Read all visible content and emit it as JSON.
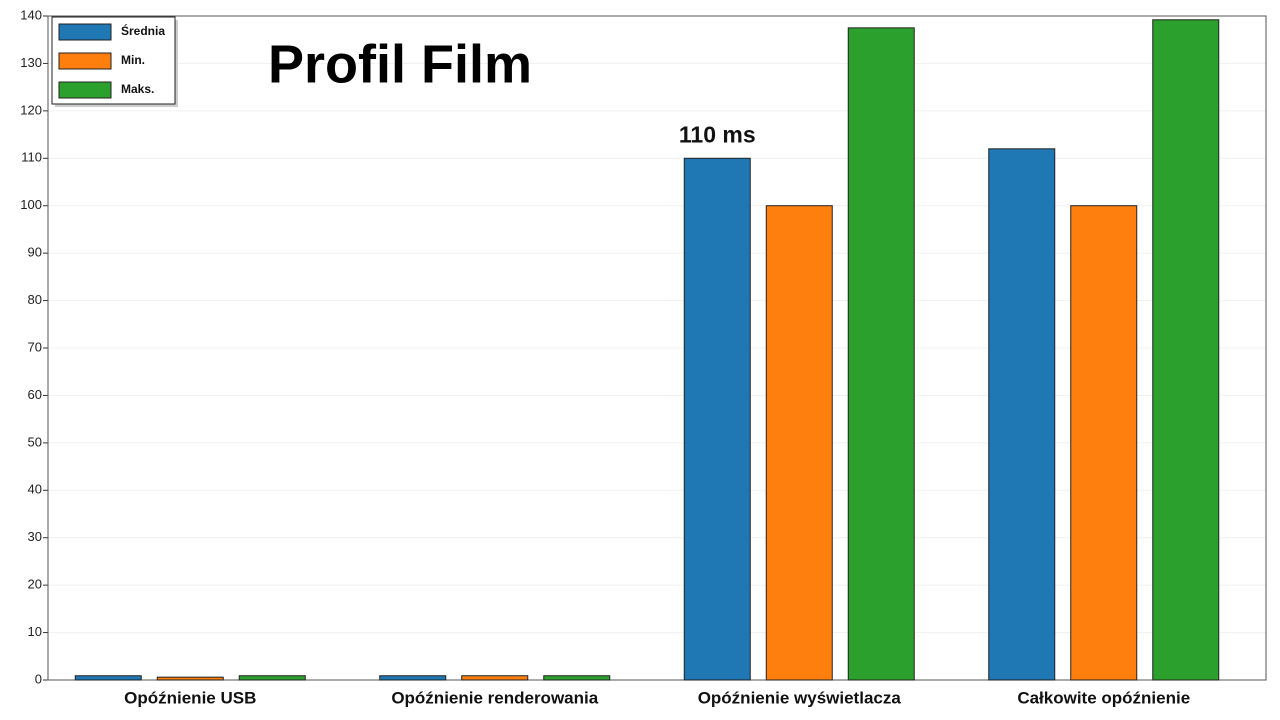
{
  "chart_data": {
    "type": "bar",
    "title": "Profil Film",
    "categories": [
      "Opóźnienie USB",
      "Opóźnienie renderowania",
      "Opóźnienie wyświetlacza",
      "Całkowite opóźnienie"
    ],
    "series": [
      {
        "name": "Średnia",
        "color": "#1f77b4",
        "values": [
          0.9,
          0.9,
          110,
          112
        ],
        "value_labels": [
          null,
          null,
          "110 ms",
          null
        ]
      },
      {
        "name": "Min.",
        "color": "#ff7f0e",
        "values": [
          0.6,
          0.9,
          100,
          100
        ]
      },
      {
        "name": "Maks.",
        "color": "#2ca02c",
        "values": [
          0.9,
          0.9,
          137.5,
          139.2
        ]
      }
    ],
    "ylim": [
      0,
      140
    ],
    "yticks": [
      0,
      10,
      20,
      30,
      40,
      50,
      60,
      70,
      80,
      90,
      100,
      110,
      120,
      130,
      140
    ],
    "grid": true,
    "legend": "upper-left"
  }
}
